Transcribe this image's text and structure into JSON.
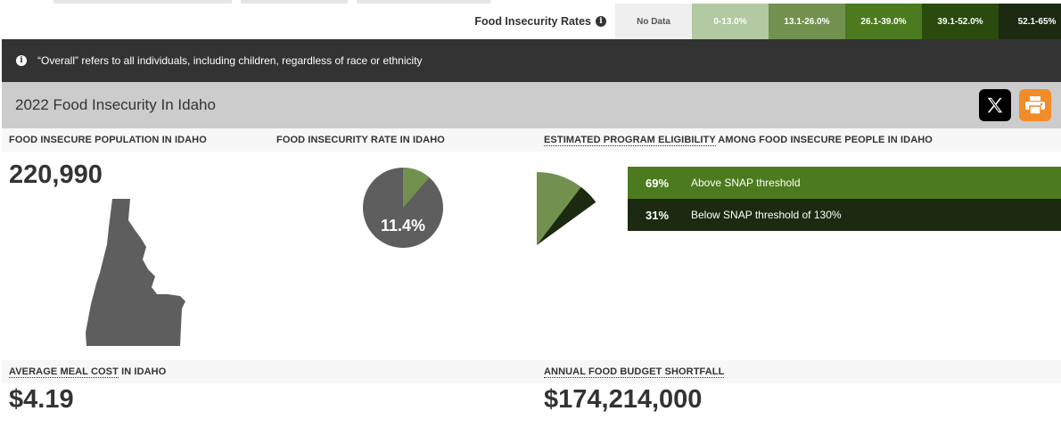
{
  "legend": {
    "title": "Food Insecurity Rates",
    "info_icon": "info-icon",
    "cells": [
      {
        "label": "No Data",
        "bg": "#efefef",
        "fg": "#555555"
      },
      {
        "label": "0-13.0%",
        "bg": "#b2c9a2",
        "fg": "#ffffff"
      },
      {
        "label": "13.1-26.0%",
        "bg": "#72914f",
        "fg": "#ffffff"
      },
      {
        "label": "26.1-39.0%",
        "bg": "#4c7a1e",
        "fg": "#ffffff"
      },
      {
        "label": "39.1-52.0%",
        "bg": "#2a4a0e",
        "fg": "#ffffff"
      },
      {
        "label": "52.1-65%",
        "bg": "#1b2a10",
        "fg": "#ffffff"
      }
    ]
  },
  "banner": {
    "text": "“Overall” refers to all individuals, including children, regardless of race or ethnicity"
  },
  "header": {
    "title": "2022 Food Insecurity In Idaho",
    "share_x_icon": "x-logo-icon",
    "print_icon": "printer-icon"
  },
  "stats": {
    "population_label": "Food Insecure Population in Idaho",
    "population_value": "220,990",
    "rate_label": "Food Insecurity Rate in Idaho",
    "rate_value": "11.4%",
    "rate_fraction": 0.114,
    "eligibility_label_link": "Estimated Program Eligibility",
    "eligibility_label_rest": " among Food Insecure People in Idaho",
    "meal_cost_label_link": "Average Meal Cost",
    "meal_cost_label_rest": " in Idaho",
    "meal_cost_value": "$4.19",
    "shortfall_label": "Annual Food Budget Shortfall",
    "shortfall_value": "$174,214,000"
  },
  "chart_data": {
    "type": "pie",
    "values": [
      69,
      31
    ],
    "series": [
      {
        "name": "Above SNAP threshold",
        "value": 69,
        "color": "#4c7a1e"
      },
      {
        "name": "Below SNAP threshold of 130%",
        "value": 31,
        "color": "#1b2a10"
      }
    ],
    "labels": [
      "69%",
      "31%"
    ]
  },
  "colors": {
    "dark": "#333333",
    "pie_bg": "#5e5e5e",
    "pie_slice": "#72914f",
    "accent_orange": "#f28c28"
  }
}
